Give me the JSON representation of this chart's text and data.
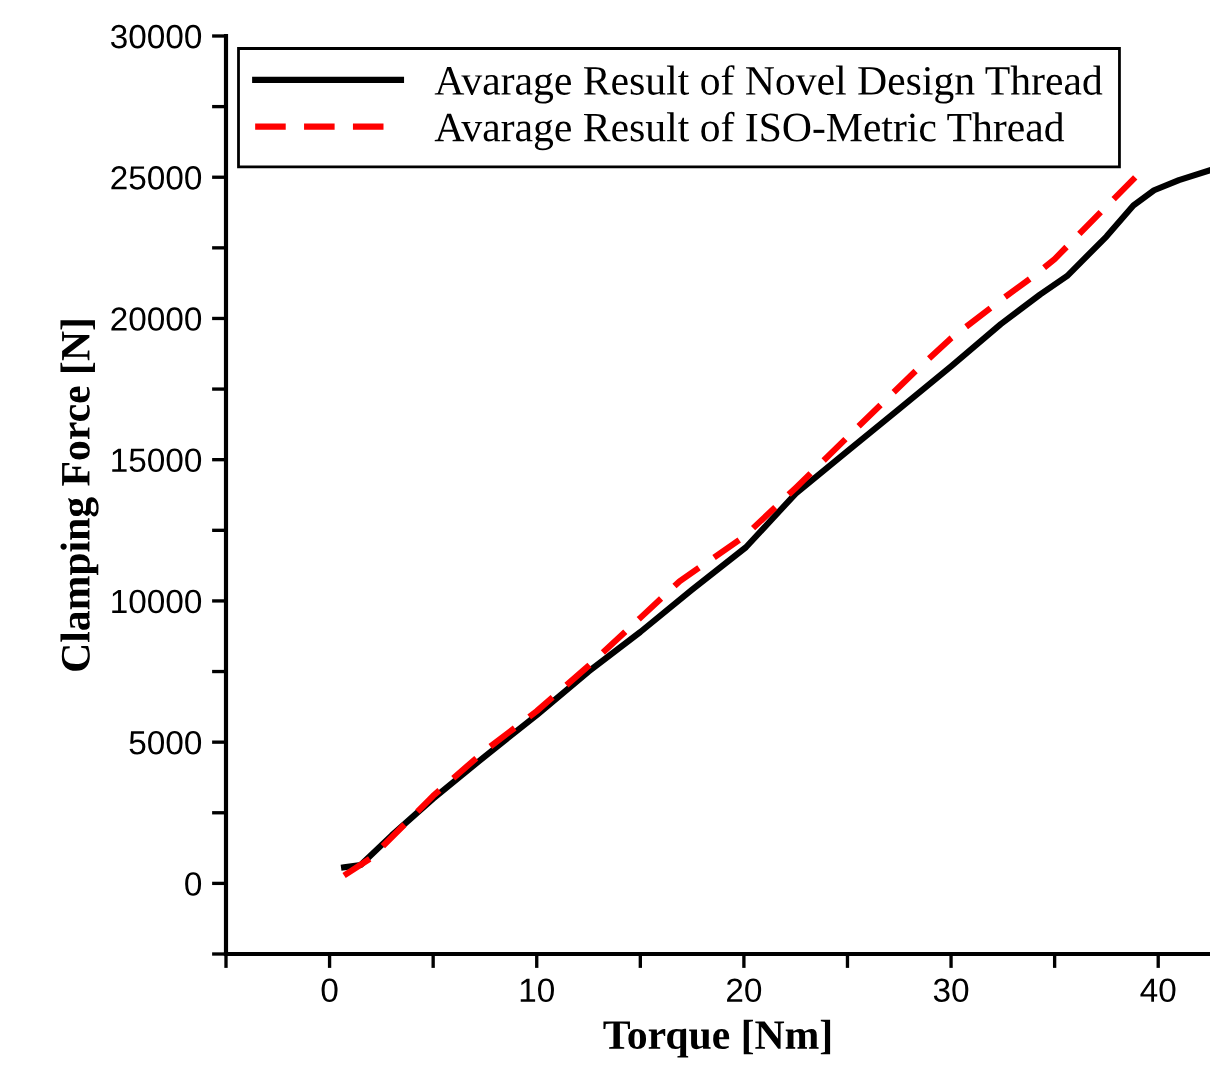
{
  "chart_data": {
    "type": "line",
    "xlabel": "Torque [Nm]",
    "ylabel": "Clamping Force [N]",
    "xlim": [
      -5,
      42.5
    ],
    "ylim": [
      -2500,
      30000
    ],
    "xticks": [
      {
        "value": -5,
        "label": null
      },
      0,
      {
        "value": 5,
        "label": null
      },
      10,
      {
        "value": 15,
        "label": null
      },
      20,
      {
        "value": 25,
        "label": null
      },
      30,
      {
        "value": 35,
        "label": null
      },
      40
    ],
    "yticks": [
      {
        "value": -2500,
        "label": null
      },
      0,
      {
        "value": 2500,
        "label": null
      },
      5000,
      {
        "value": 7500,
        "label": null
      },
      10000,
      {
        "value": 12500,
        "label": null
      },
      15000,
      {
        "value": 17500,
        "label": null
      },
      20000,
      {
        "value": 22500,
        "label": null
      },
      25000,
      {
        "value": 27500,
        "label": null
      },
      30000
    ],
    "grid": false,
    "legend": "top left",
    "series": [
      {
        "name": "Avarage Result of Novel Design Thread",
        "color": "#000000",
        "line_style": "solid",
        "x": [
          0.7,
          1.5,
          3,
          5,
          7.5,
          10,
          12.5,
          15,
          17.5,
          20.1,
          22.5,
          25,
          27.5,
          30,
          32.4,
          34.3,
          35.6,
          37.5,
          38.8,
          39.8,
          41,
          42.5
        ],
        "values": [
          570,
          650,
          1700,
          3000,
          4500,
          5960,
          7500,
          8900,
          10400,
          11900,
          13800,
          15300,
          16800,
          18300,
          19800,
          20850,
          21500,
          22900,
          24000,
          24540,
          24900,
          25250
        ]
      },
      {
        "name": "Avarage Result of ISO-Metric Thread",
        "color": "#ff0000",
        "line_style": "dashed",
        "x": [
          0.7,
          2,
          5,
          7.5,
          10,
          12.5,
          15,
          16.9,
          20,
          22.5,
          25,
          28.3,
          30,
          32.5,
          34.1,
          35,
          37,
          38.9
        ],
        "values": [
          280,
          900,
          3100,
          4700,
          6100,
          7700,
          9400,
          10700,
          12270,
          14000,
          15800,
          18150,
          19300,
          20700,
          21560,
          22100,
          23600,
          25000
        ]
      }
    ]
  }
}
